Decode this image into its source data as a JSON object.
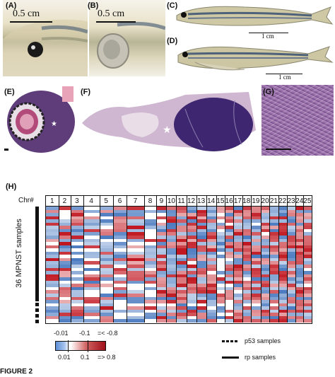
{
  "panels": {
    "a": {
      "label": "(A)",
      "scale": "0.5 cm"
    },
    "b": {
      "label": "(B)",
      "scale": "0.5 cm"
    },
    "c": {
      "label": "(C)",
      "scale": "1 cm"
    },
    "d": {
      "label": "(D)",
      "scale": "1 cm"
    },
    "e": {
      "label": "(E)"
    },
    "f": {
      "label": "(F)"
    },
    "g": {
      "label": "(G)"
    },
    "h": {
      "label": "(H)"
    }
  },
  "heatmap": {
    "chr_label": "Chr#",
    "chromosomes": [
      "1",
      "2",
      "3",
      "4",
      "5",
      "6",
      "7",
      "8",
      "9",
      "10",
      "11",
      "12",
      "13",
      "14",
      "15",
      "16",
      "17",
      "18",
      "19",
      "20",
      "21",
      "22",
      "23",
      "24",
      "25"
    ],
    "ylabel": "36 MPNST samples",
    "n_samples": 36,
    "colors": {
      "loss": "#2b63b5",
      "gain": "#c0151e",
      "neutral": "#ffffff"
    }
  },
  "colorbar": {
    "top_labels": [
      "-0.01",
      "-0.1",
      "=< -0.8"
    ],
    "bottom_labels": [
      "0.01",
      "0.1",
      "=> 0.8"
    ]
  },
  "legend": {
    "p53": "p53 samples",
    "rp": "rp samples"
  },
  "figure_label": "FIGURE 2"
}
